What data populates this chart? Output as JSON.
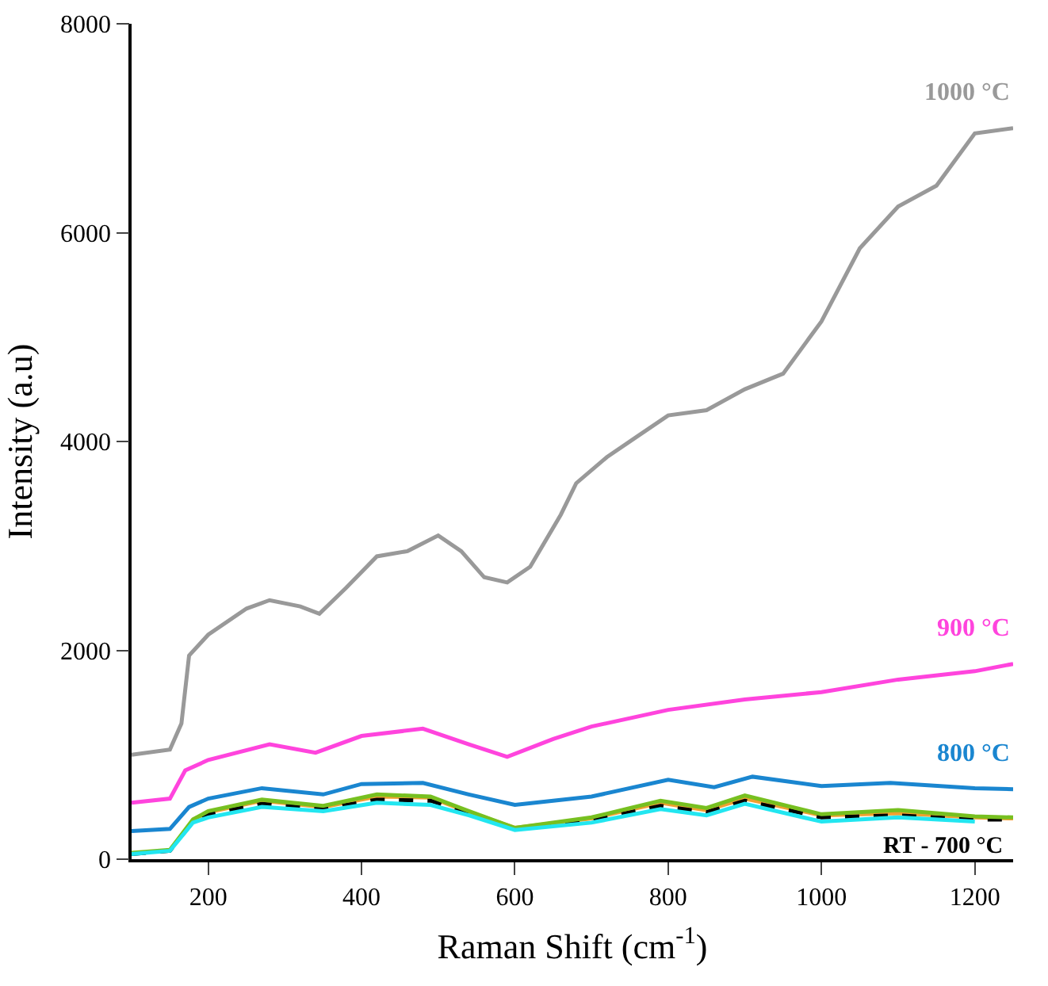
{
  "chart_data": {
    "type": "line",
    "xlabel": "Raman Shift (cm$^{-1}$)",
    "ylabel": "Intensity (a.u)",
    "xlim": [
      100,
      1250
    ],
    "xticks": [
      200,
      400,
      600,
      800,
      1000,
      1200
    ],
    "ylim": [
      0,
      8000
    ],
    "yticks": [
      0,
      2000,
      4000,
      6000,
      8000
    ],
    "legend": false,
    "marker": "none",
    "line_style": "solid",
    "annotations": [
      {
        "text": "RT - 700 °C",
        "x": 1200,
        "y": 400
      }
    ],
    "series": [
      {
        "name": "1000 °C",
        "color": "#999999",
        "x": [
          100,
          150,
          165,
          175,
          200,
          250,
          280,
          320,
          345,
          380,
          420,
          460,
          500,
          530,
          560,
          590,
          620,
          660,
          680,
          720,
          760,
          800,
          850,
          900,
          950,
          1000,
          1050,
          1100,
          1150,
          1200,
          1250
        ],
        "values": [
          1000,
          1050,
          1300,
          1950,
          2150,
          2400,
          2480,
          2420,
          2350,
          2600,
          2900,
          2950,
          3100,
          2950,
          2700,
          2650,
          2800,
          3300,
          3600,
          3850,
          4050,
          4250,
          4300,
          4500,
          4650,
          5150,
          5850,
          6250,
          6450,
          6950,
          7000
        ]
      },
      {
        "name": "900 °C",
        "color": "#ff44dd",
        "x": [
          100,
          150,
          170,
          200,
          280,
          340,
          400,
          480,
          540,
          590,
          650,
          700,
          800,
          900,
          1000,
          1100,
          1200,
          1250
        ],
        "values": [
          540,
          580,
          850,
          950,
          1100,
          1020,
          1180,
          1250,
          1100,
          980,
          1150,
          1270,
          1430,
          1530,
          1600,
          1720,
          1800,
          1870
        ]
      },
      {
        "name": "800 °C",
        "color": "#1a86d0",
        "x": [
          100,
          150,
          175,
          200,
          270,
          350,
          400,
          480,
          540,
          600,
          700,
          800,
          860,
          910,
          1000,
          1090,
          1200,
          1250
        ],
        "values": [
          270,
          290,
          500,
          580,
          680,
          620,
          720,
          730,
          620,
          520,
          600,
          760,
          690,
          790,
          700,
          730,
          680,
          670
        ]
      },
      {
        "color": "#f0a030",
        "x": [
          180,
          200,
          270,
          350,
          420,
          490,
          540,
          600,
          700,
          790,
          850,
          900,
          1000,
          1100,
          1200,
          1250
        ],
        "values": [
          380,
          450,
          560,
          500,
          600,
          590,
          450,
          300,
          390,
          540,
          470,
          580,
          420,
          440,
          400,
          390
        ]
      },
      {
        "color": "#000000",
        "line_style": "dashed",
        "x": [
          100,
          150,
          180,
          200,
          270,
          350,
          420,
          490,
          540,
          600,
          700,
          790,
          850,
          900,
          1000,
          1100,
          1200,
          1250
        ],
        "values": [
          50,
          80,
          360,
          430,
          530,
          480,
          570,
          560,
          440,
          290,
          370,
          510,
          450,
          560,
          400,
          420,
          380,
          380
        ]
      },
      {
        "color": "#77c020",
        "x": [
          100,
          150,
          180,
          200,
          270,
          350,
          420,
          490,
          540,
          600,
          700,
          790,
          850,
          900,
          1000,
          1100,
          1200,
          1250
        ],
        "values": [
          60,
          90,
          380,
          460,
          570,
          510,
          620,
          600,
          460,
          300,
          400,
          560,
          490,
          610,
          430,
          470,
          410,
          400
        ]
      },
      {
        "color": "#22e6f0",
        "x": [
          100,
          150,
          180,
          200,
          270,
          350,
          420,
          490,
          540,
          600,
          700,
          790,
          850,
          900,
          1000,
          1100,
          1200
        ],
        "values": [
          50,
          80,
          350,
          400,
          500,
          460,
          540,
          520,
          420,
          280,
          350,
          480,
          420,
          530,
          360,
          400,
          360
        ]
      }
    ]
  }
}
